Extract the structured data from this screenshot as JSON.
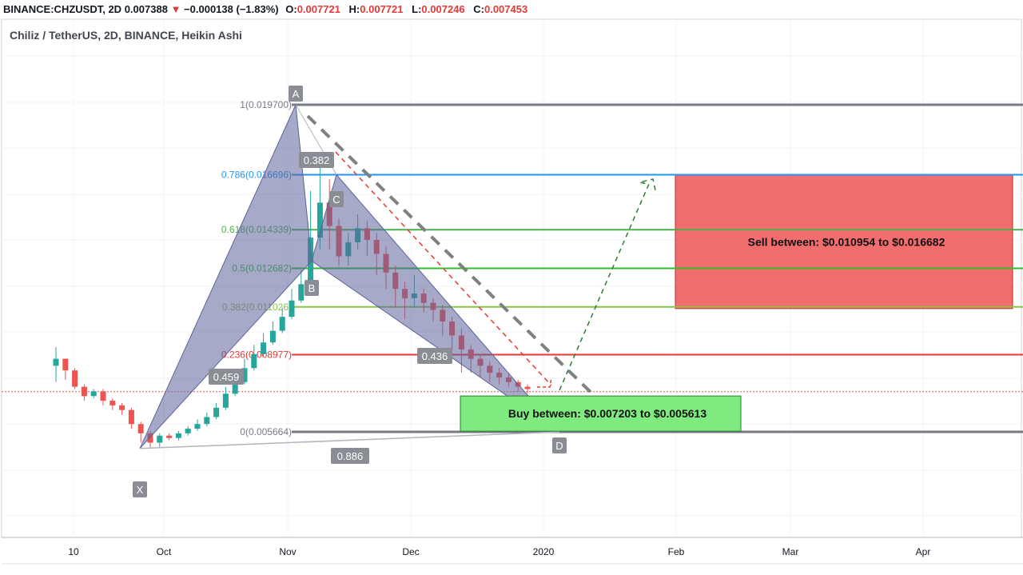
{
  "header": {
    "symbol": "BINANCE:CHZUSDT",
    "interval": "2D",
    "last": "0.007388",
    "arrow": "▼",
    "change": "−0.000138 (−1.83%)",
    "open_label": "O:",
    "open": "0.007721",
    "high_label": "H:",
    "high": "0.007721",
    "low_label": "L:",
    "low": "0.007246",
    "close_label": "C:",
    "close": "0.007453"
  },
  "chart_title": "Chiliz / TetherUS, 2D, BINANCE, Heikin Ashi",
  "colors": {
    "up": "#26a69a",
    "down": "#ef5350",
    "pattern": "#5c6399",
    "sell_box": "#f26d6d",
    "buy_box": "#7fea7f"
  },
  "chart_data": {
    "type": "candlestick",
    "style": "Heikin Ashi",
    "x_axis_labels": [
      "10",
      "Oct",
      "Nov",
      "Dec",
      "2020",
      "Feb",
      "Mar",
      "Apr"
    ],
    "fib_levels": [
      {
        "label": "1(0.019700)",
        "price": 0.0197,
        "color": "#787b86"
      },
      {
        "label": "0.786(0.016696)",
        "price": 0.016696,
        "color": "#2196f3"
      },
      {
        "label": "0.618(0.014339)",
        "price": 0.014339,
        "color": "#4caf50"
      },
      {
        "label": "0.5(0.012682)",
        "price": 0.012682,
        "color": "#2ebd2e"
      },
      {
        "label": "0.382(0.011026)",
        "price": 0.011026,
        "color": "#8bc34a"
      },
      {
        "label": "0.236(0.008977)",
        "price": 0.008977,
        "color": "#e53935"
      },
      {
        "label": "0(0.005664)",
        "price": 0.005664,
        "color": "#787b86"
      }
    ],
    "pattern_points": [
      {
        "name": "X",
        "price": 0.00495
      },
      {
        "name": "A",
        "price": 0.0197
      },
      {
        "name": "B",
        "price": 0.013
      },
      {
        "name": "C",
        "price": 0.0167
      },
      {
        "name": "D",
        "price": 0.00566
      }
    ],
    "ratios": [
      "0.382",
      "0.459",
      "0.436",
      "0.886"
    ],
    "sell_zone": {
      "text": "Sell between: $0.010954 to $0.016682",
      "from": 0.010954,
      "to": 0.016682
    },
    "buy_zone": {
      "text": "Buy between: $0.007203 to $0.005613",
      "from": 0.007203,
      "to": 0.005613
    },
    "current_price": 0.007388,
    "candles_ohlc": [
      [
        0.0085,
        0.0088,
        0.0093,
        0.0078
      ],
      [
        0.0088,
        0.0083,
        0.0088,
        0.0079
      ],
      [
        0.0083,
        0.0076,
        0.0084,
        0.0075
      ],
      [
        0.0076,
        0.0072,
        0.0077,
        0.007
      ],
      [
        0.0072,
        0.0074,
        0.0075,
        0.0071
      ],
      [
        0.0074,
        0.007,
        0.0075,
        0.0068
      ],
      [
        0.007,
        0.0068,
        0.0071,
        0.0066
      ],
      [
        0.0068,
        0.0066,
        0.0069,
        0.0064
      ],
      [
        0.0066,
        0.006,
        0.0067,
        0.0058
      ],
      [
        0.006,
        0.0056,
        0.0061,
        0.0052
      ],
      [
        0.0056,
        0.0052,
        0.0057,
        0.005
      ],
      [
        0.0052,
        0.0055,
        0.0056,
        0.005
      ],
      [
        0.0055,
        0.0054,
        0.0056,
        0.0053
      ],
      [
        0.0054,
        0.0056,
        0.0057,
        0.0053
      ],
      [
        0.0056,
        0.0058,
        0.0059,
        0.0055
      ],
      [
        0.0058,
        0.006,
        0.0062,
        0.0057
      ],
      [
        0.006,
        0.0063,
        0.0065,
        0.0059
      ],
      [
        0.0063,
        0.0067,
        0.0069,
        0.0062
      ],
      [
        0.0067,
        0.0073,
        0.0076,
        0.0066
      ],
      [
        0.0073,
        0.0078,
        0.0082,
        0.0072
      ],
      [
        0.0078,
        0.0084,
        0.0088,
        0.0077
      ],
      [
        0.0084,
        0.009,
        0.0094,
        0.0083
      ],
      [
        0.009,
        0.0095,
        0.0099,
        0.0089
      ],
      [
        0.0095,
        0.01,
        0.0104,
        0.0094
      ],
      [
        0.01,
        0.0106,
        0.011,
        0.0099
      ],
      [
        0.0106,
        0.0113,
        0.0118,
        0.0105
      ],
      [
        0.0113,
        0.012,
        0.0126,
        0.0112
      ],
      [
        0.012,
        0.014,
        0.016,
        0.0118
      ],
      [
        0.014,
        0.0155,
        0.017,
        0.0135
      ],
      [
        0.0155,
        0.0145,
        0.0165,
        0.0135
      ],
      [
        0.0145,
        0.0132,
        0.0148,
        0.0128
      ],
      [
        0.0132,
        0.0138,
        0.0142,
        0.0128
      ],
      [
        0.0138,
        0.0144,
        0.015,
        0.0135
      ],
      [
        0.0144,
        0.0139,
        0.0147,
        0.0132
      ],
      [
        0.0139,
        0.0133,
        0.0142,
        0.0124
      ],
      [
        0.0133,
        0.0125,
        0.0136,
        0.0118
      ],
      [
        0.0125,
        0.0118,
        0.0128,
        0.011
      ],
      [
        0.0118,
        0.0114,
        0.0121,
        0.0105
      ],
      [
        0.0114,
        0.0116,
        0.0124,
        0.011
      ],
      [
        0.0116,
        0.0112,
        0.0118,
        0.0108
      ],
      [
        0.0112,
        0.0109,
        0.0114,
        0.0104
      ],
      [
        0.0109,
        0.0104,
        0.0111,
        0.0098
      ],
      [
        0.0104,
        0.0098,
        0.0106,
        0.0092
      ],
      [
        0.0098,
        0.0092,
        0.0101,
        0.0082
      ],
      [
        0.0092,
        0.0088,
        0.0094,
        0.0082
      ],
      [
        0.0088,
        0.0085,
        0.009,
        0.008
      ],
      [
        0.0085,
        0.0082,
        0.0087,
        0.0078
      ],
      [
        0.0082,
        0.008,
        0.0084,
        0.0077
      ],
      [
        0.008,
        0.0078,
        0.0082,
        0.0076
      ],
      [
        0.0078,
        0.0076,
        0.0079,
        0.0074
      ],
      [
        0.0076,
        0.0075,
        0.0077,
        0.0073
      ]
    ]
  }
}
